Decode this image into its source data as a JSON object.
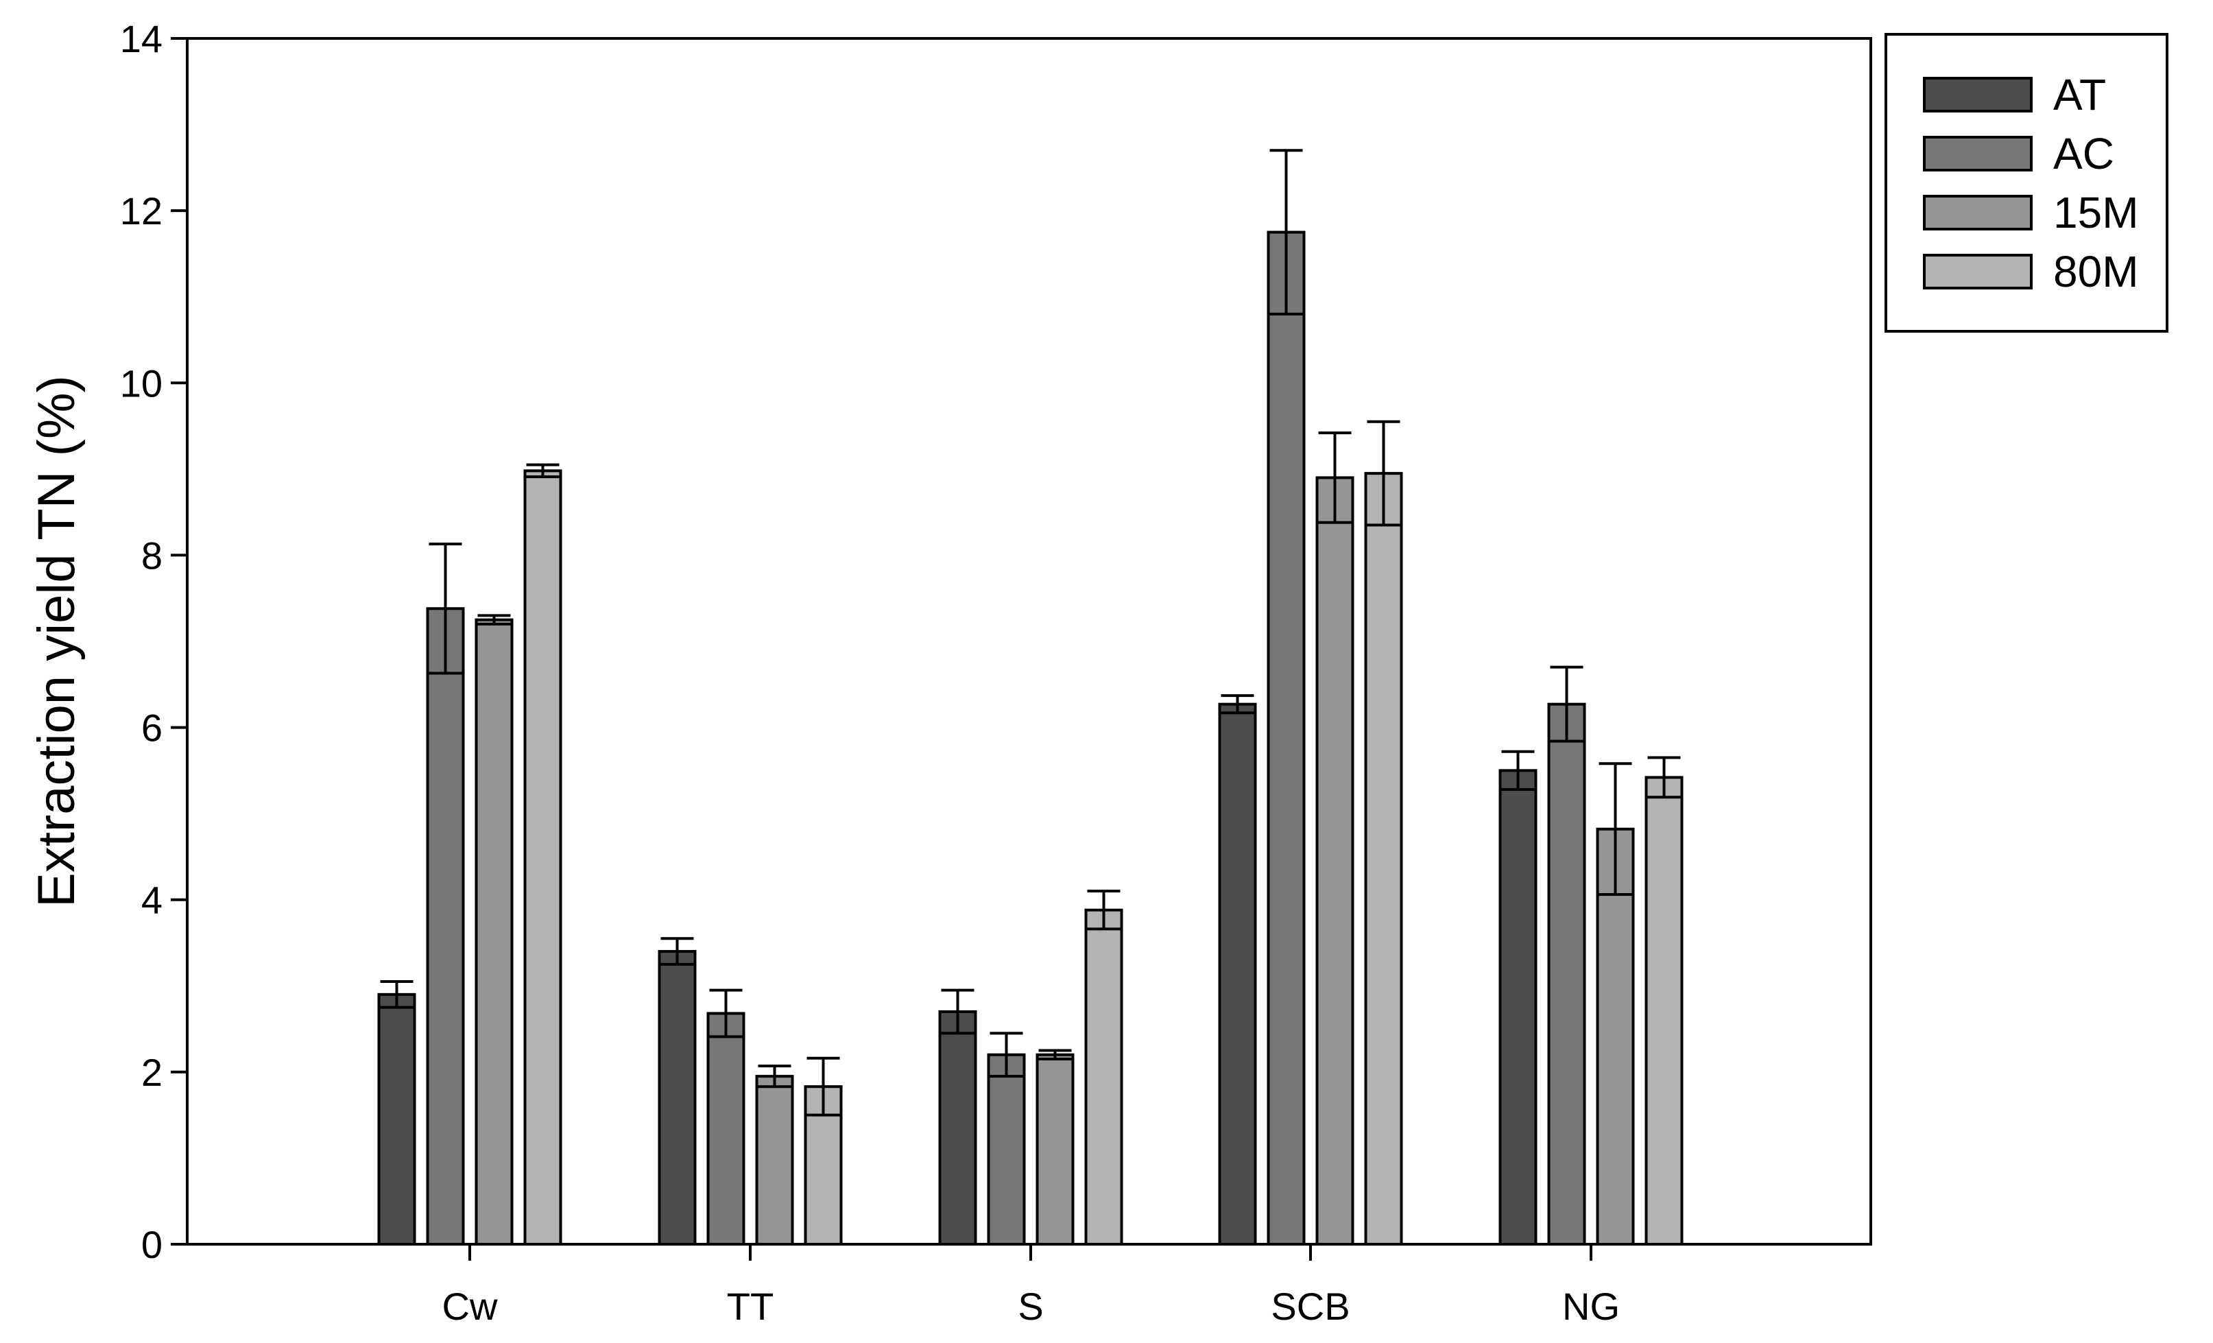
{
  "chart_data": {
    "type": "bar",
    "title": "",
    "xlabel": "",
    "ylabel": "Extraction yield TN (%)",
    "ylim": [
      0,
      14
    ],
    "yticks": [
      0,
      2,
      4,
      6,
      8,
      10,
      12,
      14
    ],
    "grid": false,
    "legend_position": "top-right",
    "categories": [
      "Cw",
      "TT",
      "S",
      "SCB",
      "NG"
    ],
    "series": [
      {
        "name": "AT",
        "color": "#4d4d4d",
        "values": [
          2.9,
          3.4,
          2.7,
          6.27,
          5.5
        ],
        "errors": [
          0.15,
          0.15,
          0.25,
          0.1,
          0.22
        ]
      },
      {
        "name": "AC",
        "color": "#777777",
        "values": [
          7.38,
          2.68,
          2.2,
          11.75,
          6.27
        ],
        "errors": [
          0.75,
          0.27,
          0.25,
          0.95,
          0.43
        ]
      },
      {
        "name": "15M",
        "color": "#959595",
        "values": [
          7.25,
          1.95,
          2.2,
          8.9,
          4.82
        ],
        "errors": [
          0.05,
          0.12,
          0.05,
          0.52,
          0.76
        ]
      },
      {
        "name": "80M",
        "color": "#b3b3b3",
        "values": [
          8.98,
          1.83,
          3.88,
          8.95,
          5.42
        ],
        "errors": [
          0.07,
          0.33,
          0.22,
          0.6,
          0.23
        ]
      }
    ]
  }
}
